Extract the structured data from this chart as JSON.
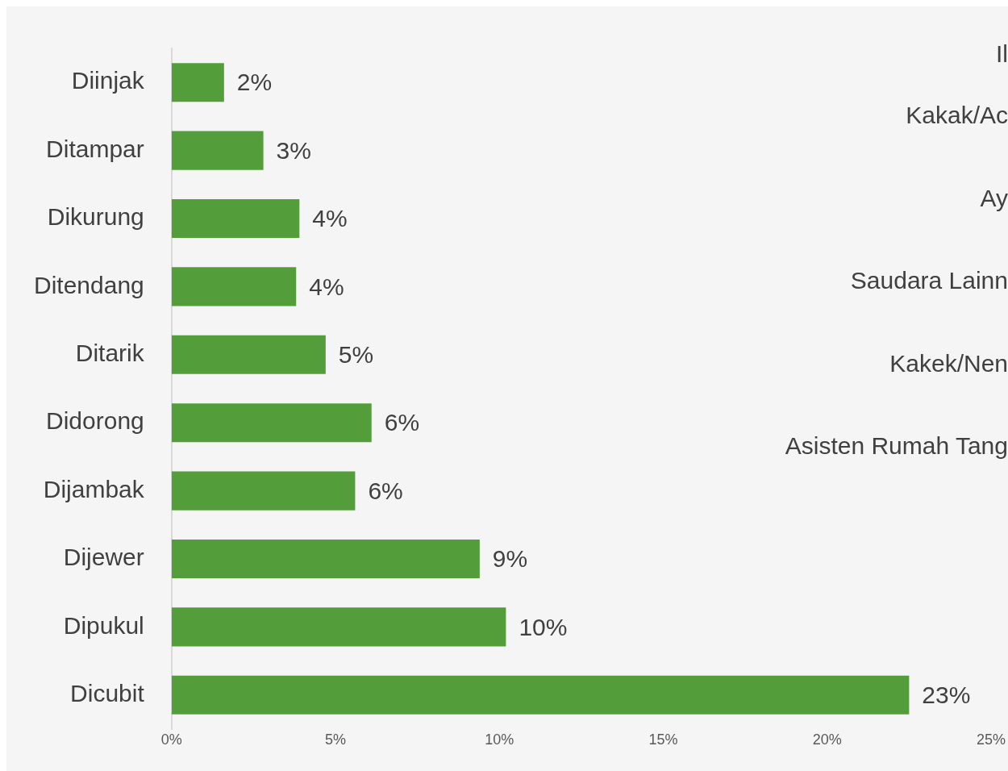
{
  "chart_data": {
    "type": "bar",
    "orientation": "horizontal",
    "categories": [
      "Diinjak",
      "Ditampar",
      "Dikurung",
      "Ditendang",
      "Ditarik",
      "Didorong",
      "Dijambak",
      "Dijewer",
      "Dipukul",
      "Dicubit"
    ],
    "values": [
      1.6,
      2.8,
      3.9,
      3.8,
      4.7,
      6.1,
      5.6,
      9.4,
      10.2,
      22.5
    ],
    "value_labels": [
      "2%",
      "3%",
      "4%",
      "4%",
      "5%",
      "6%",
      "6%",
      "9%",
      "10%",
      "23%"
    ],
    "color": "#539e3a",
    "xlim": [
      0,
      25
    ],
    "xticks": [
      {
        "value": 0,
        "label": "0%"
      },
      {
        "value": 5,
        "label": "5%"
      },
      {
        "value": 10,
        "label": "10%"
      },
      {
        "value": 15,
        "label": "15%"
      },
      {
        "value": 20,
        "label": "20%"
      },
      {
        "value": 25,
        "label": "25%"
      }
    ],
    "grid": false,
    "legend": false,
    "annotations": [
      "Il",
      "Kakak/Ac",
      "Ay",
      "Saudara Lainn",
      "Kakek/Nen",
      "Asisten Rumah Tang"
    ]
  }
}
